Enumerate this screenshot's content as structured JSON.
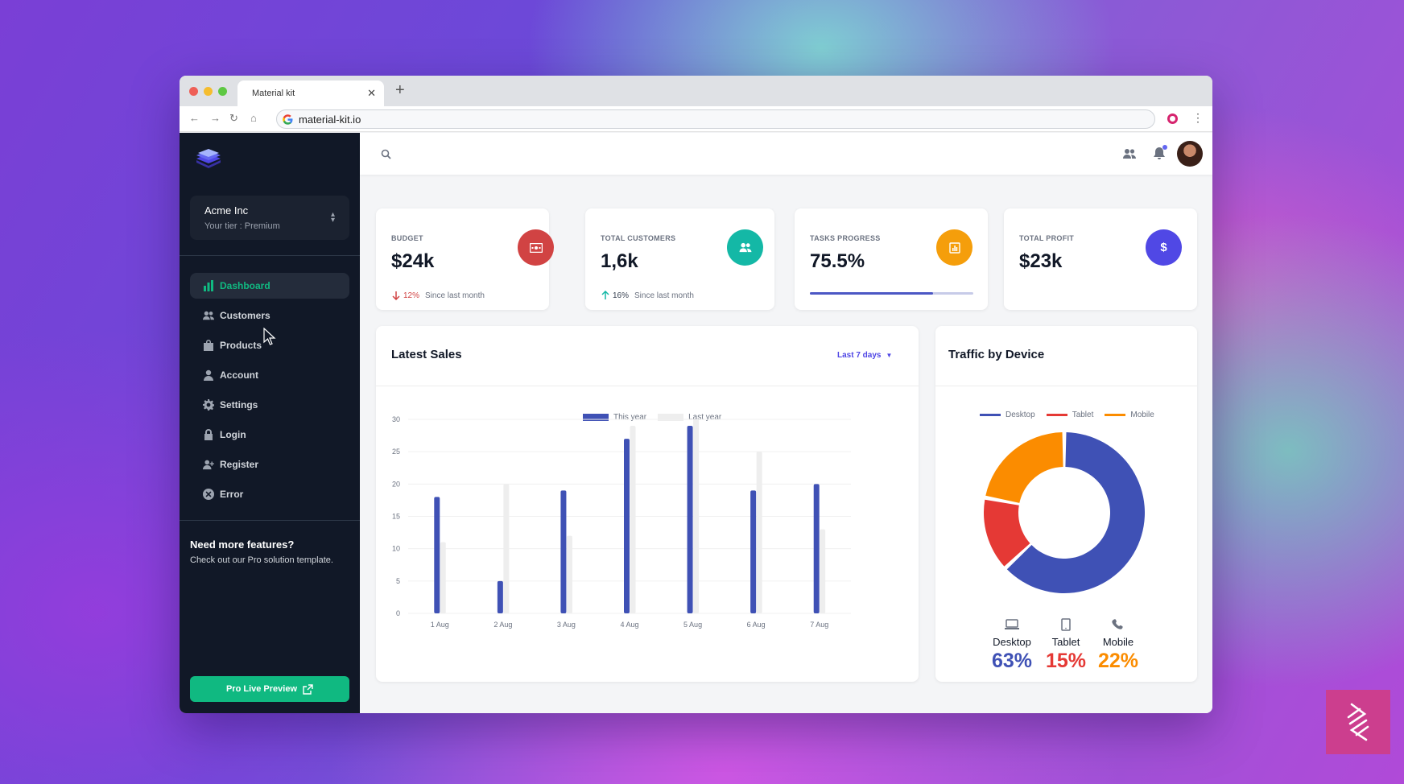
{
  "browser": {
    "tab_title": "Material kit",
    "url": "material-kit.io"
  },
  "sidebar": {
    "org_name": "Acme Inc",
    "org_tier": "Your tier : Premium",
    "items": [
      {
        "label": "Dashboard",
        "icon": "chart-bar-icon",
        "active": true
      },
      {
        "label": "Customers",
        "icon": "users-icon"
      },
      {
        "label": "Products",
        "icon": "shopping-bag-icon"
      },
      {
        "label": "Account",
        "icon": "user-icon"
      },
      {
        "label": "Settings",
        "icon": "cog-icon"
      },
      {
        "label": "Login",
        "icon": "lock-icon"
      },
      {
        "label": "Register",
        "icon": "user-add-icon"
      },
      {
        "label": "Error",
        "icon": "x-circle-icon"
      }
    ],
    "promo_title": "Need more features?",
    "promo_sub": "Check out our Pro solution template.",
    "pro_button": "Pro Live Preview"
  },
  "stats": {
    "budget": {
      "label": "BUDGET",
      "value": "$24k",
      "pct": "12%",
      "since": "Since last month",
      "color": "#d14343",
      "trend": "down"
    },
    "customers": {
      "label": "TOTAL CUSTOMERS",
      "value": "1,6k",
      "pct": "16%",
      "since": "Since last month",
      "color": "#14b8a6",
      "trend": "up"
    },
    "tasks": {
      "label": "TASKS PROGRESS",
      "value": "75.5%",
      "progress": 0.755,
      "color": "#f59e0b"
    },
    "profit": {
      "label": "TOTAL PROFIT",
      "value": "$23k",
      "icon_text": "$",
      "color": "#5048e5"
    }
  },
  "sales": {
    "title": "Latest Sales",
    "range": "Last 7 days"
  },
  "traffic": {
    "title": "Traffic by Device",
    "devices": [
      {
        "name": "Desktop",
        "pct": "63%",
        "color": "#3f51b5",
        "icon": "laptop-icon"
      },
      {
        "name": "Tablet",
        "pct": "15%",
        "color": "#e53935",
        "icon": "tablet-icon"
      },
      {
        "name": "Mobile",
        "pct": "22%",
        "color": "#fb8c00",
        "icon": "phone-icon"
      }
    ]
  },
  "chart_data": [
    {
      "type": "bar",
      "categories": [
        "1 Aug",
        "2 Aug",
        "3 Aug",
        "4 Aug",
        "5 Aug",
        "6 Aug",
        "7 Aug"
      ],
      "series": [
        {
          "name": "This year",
          "values": [
            18,
            5,
            19,
            27,
            29,
            19,
            20
          ],
          "color": "#3f51b5"
        },
        {
          "name": "Last year",
          "values": [
            11,
            20,
            12,
            29,
            30,
            25,
            13
          ],
          "color": "#eeeeee"
        }
      ],
      "yticks": [
        0,
        5,
        10,
        15,
        20,
        25,
        30
      ],
      "ylim": [
        0,
        30
      ],
      "legend": "top-center",
      "grid": true
    },
    {
      "type": "pie",
      "categories": [
        "Desktop",
        "Tablet",
        "Mobile"
      ],
      "values": [
        63,
        15,
        22
      ],
      "colors": [
        "#3f51b5",
        "#e53935",
        "#fb8c00"
      ],
      "legend": "top-center"
    }
  ]
}
